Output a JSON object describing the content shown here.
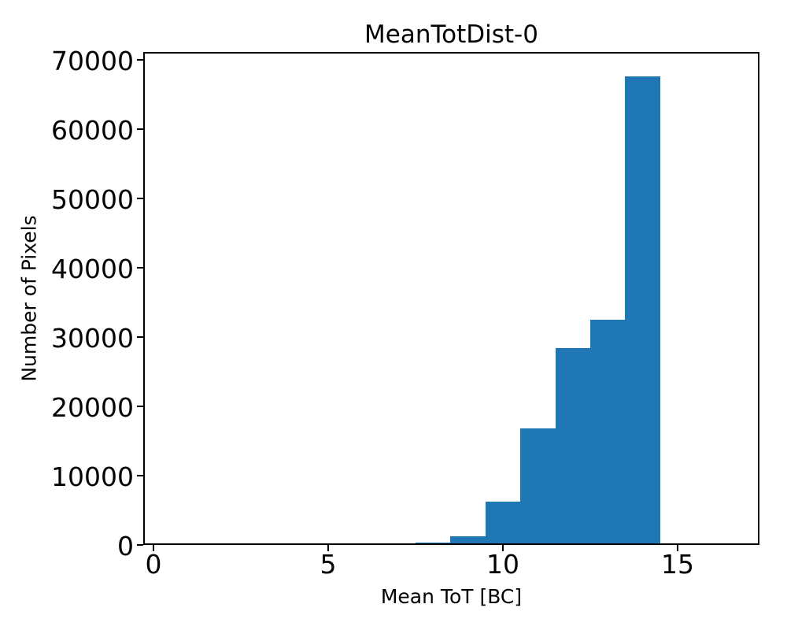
{
  "figure": {
    "background": "#ffffff"
  },
  "chart_data": {
    "type": "bar",
    "subtype": "histogram",
    "title": "MeanTotDist-0",
    "xlabel": "Mean ToT [BC]",
    "ylabel": "Number of Pixels",
    "bin_edges": [
      7.5,
      8.5,
      9.5,
      10.5,
      11.5,
      12.5,
      13.5,
      14.5
    ],
    "counts": [
      300,
      1300,
      6300,
      16800,
      28400,
      32500,
      67600
    ],
    "xticks": [
      0,
      5,
      10,
      15
    ],
    "yticks": [
      0,
      10000,
      20000,
      30000,
      40000,
      50000,
      60000,
      70000
    ],
    "xlim": [
      -0.293,
      17.342
    ],
    "ylim": [
      0,
      71100
    ],
    "bar_color": "#1f77b4",
    "axis_color": "#000000",
    "text_color": "#000000",
    "grid": false,
    "legend_position": "none"
  }
}
